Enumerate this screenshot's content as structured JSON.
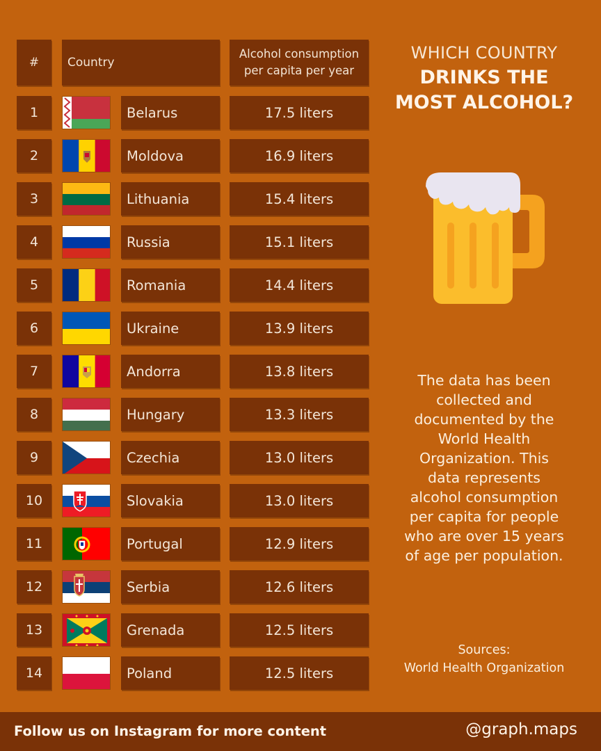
{
  "header": {
    "num_label": "#",
    "country_label": "Country",
    "consumption_label_1": "Alcohol consumption",
    "consumption_label_2": "per capita per year"
  },
  "title": {
    "line1": "WHICH COUNTRY",
    "line2a": "DRINKS THE",
    "line2b": "MOST ALCOHOL?"
  },
  "rows": [
    {
      "rank": "1",
      "country": "Belarus",
      "value": "17.5 liters"
    },
    {
      "rank": "2",
      "country": "Moldova",
      "value": "16.9 liters"
    },
    {
      "rank": "3",
      "country": "Lithuania",
      "value": "15.4 liters"
    },
    {
      "rank": "4",
      "country": "Russia",
      "value": "15.1 liters"
    },
    {
      "rank": "5",
      "country": "Romania",
      "value": "14.4 liters"
    },
    {
      "rank": "6",
      "country": "Ukraine",
      "value": "13.9 liters"
    },
    {
      "rank": "7",
      "country": "Andorra",
      "value": "13.8 liters"
    },
    {
      "rank": "8",
      "country": "Hungary",
      "value": "13.3 liters"
    },
    {
      "rank": "9",
      "country": "Czechia",
      "value": "13.0 liters"
    },
    {
      "rank": "10",
      "country": "Slovakia",
      "value": "13.0 liters"
    },
    {
      "rank": "11",
      "country": "Portugal",
      "value": "12.9 liters"
    },
    {
      "rank": "12",
      "country": "Serbia",
      "value": "12.6 liters"
    },
    {
      "rank": "13",
      "country": "Grenada",
      "value": "12.5 liters"
    },
    {
      "rank": "14",
      "country": "Poland",
      "value": "12.5 liters"
    }
  ],
  "description": {
    "l1": "The data has been",
    "l2": "collected and",
    "l3": "documented by the",
    "l4": "World Health",
    "l5": "Organization. This",
    "l6": "data represents",
    "l7": "alcohol consumption",
    "l8": "per capita for people",
    "l9": "who are over 15 years",
    "l10": "of age per population."
  },
  "sources": {
    "label": "Sources:",
    "value": "World Health Organization"
  },
  "footer": {
    "follow": "Follow us on Instagram for more content",
    "handle": "@graph.maps"
  },
  "icons": {
    "mug": "beer-mug-icon"
  },
  "colors": {
    "background": "#c2620e",
    "cell": "#7a3207"
  }
}
